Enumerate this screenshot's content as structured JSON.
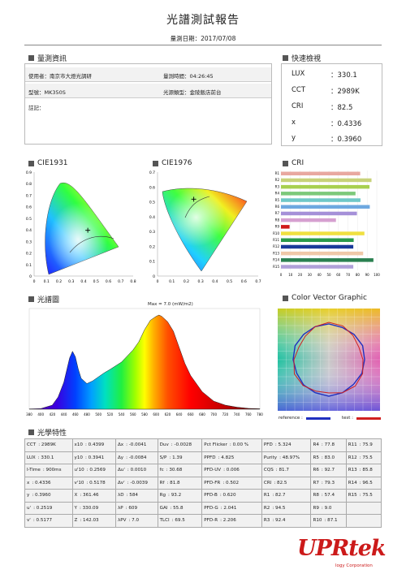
{
  "report": {
    "title": "光譜測試報告",
    "date_label": "量測日期：2017/07/08"
  },
  "measure_info": {
    "heading": "量測資訊",
    "user": "使用者：南京市大燈光調研",
    "time": "量測時間：04:26:45",
    "model": "型號：MK350S",
    "source": "光源類型：金陵飯店前台",
    "notes": "註記："
  },
  "quick": {
    "heading": "快速檢視",
    "items": [
      {
        "k": "LUX",
        "v": "：330.1"
      },
      {
        "k": "CCT",
        "v": "：2989K"
      },
      {
        "k": "CRI",
        "v": "：82.5"
      },
      {
        "k": "x",
        "v": "：0.4336"
      },
      {
        "k": "y",
        "v": "：0.3960"
      }
    ]
  },
  "cie1931": {
    "heading": "CIE1931",
    "yticks": [
      "0.9",
      "0.8",
      "0.7",
      "0.6",
      "0.5",
      "0.4",
      "0.3",
      "0.2",
      "0.1",
      "0"
    ],
    "xticks": [
      "0",
      "0.1",
      "0.2",
      "0.3",
      "0.4",
      "0.5",
      "0.6",
      "0.7",
      "0.8"
    ]
  },
  "cie1976": {
    "heading": "CIE1976",
    "yticks": [
      "0.7",
      "0.6",
      "0.5",
      "0.4",
      "0.3",
      "0.2",
      "0.1",
      "0"
    ],
    "xticks": [
      "0",
      "0.1",
      "0.2",
      "0.3",
      "0.4",
      "0.5",
      "0.6",
      "0.7"
    ]
  },
  "cri_section": {
    "heading": "CRI"
  },
  "spectrum_section": {
    "heading": "光譜圖",
    "max_label": "Max = 7.0 (mW/m2)",
    "xticks": [
      "380",
      "400",
      "420",
      "440",
      "460",
      "480",
      "500",
      "520",
      "540",
      "560",
      "580",
      "600",
      "620",
      "640",
      "660",
      "680",
      "700",
      "720",
      "740",
      "760",
      "780"
    ]
  },
  "vector_section": {
    "heading": "Color Vector Graphic",
    "legend_ref": "reference :",
    "legend_test": "test :"
  },
  "optical": {
    "heading": "光學特性",
    "rows": [
      [
        "CCT",
        ": 2989K",
        "x10",
        ": 0.4399",
        "Δx",
        ": -0.0041",
        "Duv",
        ": -0.0028",
        "Pct Flicker",
        ": 0.00 %",
        "PFD",
        ": 5.324",
        "R4",
        ": 77.8",
        "R11",
        ": 75.9"
      ],
      [
        "LUX",
        ": 330.1",
        "y10",
        ": 0.3941",
        "Δy",
        ": -0.0084",
        "S/P",
        ": 1.39",
        "PPFD",
        ": 4.825",
        "Purity",
        ": 48.97%",
        "R5",
        ": 83.0",
        "R12",
        ": 75.5"
      ],
      [
        "I-Time",
        ": 900ms",
        "u'10",
        ": 0.2569",
        "Δu'",
        ": 0.0010",
        "fc",
        ": 30.68",
        "PFD-UV",
        ": 0.006",
        "CQS",
        ": 81.7",
        "R6",
        ": 92.7",
        "R13",
        ": 85.8"
      ],
      [
        "x",
        ": 0.4336",
        "v'10",
        ": 0.5178",
        "Δv'",
        ": -0.0039",
        "Rf",
        ": 81.8",
        "PFD-FR",
        ": 0.502",
        "CRI",
        ": 82.5",
        "R7",
        ": 79.3",
        "R14",
        ": 96.5"
      ],
      [
        "y",
        ": 0.3960",
        "X",
        ": 361.46",
        "λD",
        ": 584",
        "Rg",
        ": 93.2",
        "PFD-B",
        ": 0.620",
        "R1",
        ": 82.7",
        "R8",
        ": 57.4",
        "R15",
        ": 75.5"
      ],
      [
        "u'",
        ": 0.2519",
        "Y",
        ": 330.09",
        "λP",
        ": 609",
        "GAI",
        ": 55.8",
        "PFD-G",
        ": 2.041",
        "R2",
        ": 94.5",
        "R9",
        ": 9.0",
        "",
        ""
      ],
      [
        "v'",
        ": 0.5177",
        "Z",
        ": 142.03",
        "λPV",
        ": 7.0",
        "TLCI",
        ": 69.5",
        "PFD-R",
        ": 2.206",
        "R3",
        ": 92.4",
        "R10",
        ": 87.1",
        "",
        ""
      ]
    ]
  },
  "logo": {
    "text": "UPRtek",
    "tagline": "logy Corporation"
  },
  "chart_data": [
    {
      "type": "bar",
      "orientation": "horizontal",
      "title": "CRI",
      "categories": [
        "R1",
        "R2",
        "R3",
        "R4",
        "R5",
        "R6",
        "R7",
        "R8",
        "R9",
        "R10",
        "R11",
        "R12",
        "R13",
        "R14",
        "R15"
      ],
      "values": [
        82.7,
        94.5,
        92.4,
        77.8,
        83.0,
        92.7,
        79.3,
        57.4,
        9.0,
        87.1,
        75.9,
        75.5,
        85.8,
        96.5,
        75.5
      ],
      "colors": [
        "#e8a8a0",
        "#c8d27a",
        "#a8d050",
        "#7cc97a",
        "#70c8c8",
        "#6ea8e0",
        "#a590d8",
        "#d6a0d0",
        "#d01818",
        "#f0e040",
        "#2a9a4a",
        "#1a3a9a",
        "#f0c8a8",
        "#2a8050",
        "#b0a0d8"
      ],
      "xticks": [
        "0",
        "10",
        "20",
        "30",
        "40",
        "50",
        "60",
        "70",
        "80",
        "90",
        "100"
      ],
      "xlim": [
        0,
        100
      ]
    },
    {
      "type": "area",
      "title": "光譜圖",
      "x": [
        380,
        400,
        420,
        430,
        440,
        450,
        455,
        460,
        465,
        470,
        480,
        490,
        500,
        510,
        520,
        540,
        560,
        570,
        580,
        590,
        600,
        605,
        610,
        620,
        630,
        640,
        650,
        660,
        680,
        700,
        720,
        740,
        760,
        780
      ],
      "y": [
        0.02,
        0.04,
        0.3,
        0.9,
        2.0,
        3.8,
        4.3,
        3.9,
        3.0,
        2.3,
        1.9,
        2.1,
        2.4,
        2.7,
        2.95,
        3.5,
        4.4,
        5.0,
        5.9,
        6.6,
        6.9,
        7.0,
        6.9,
        6.5,
        5.8,
        4.6,
        3.4,
        2.5,
        1.3,
        0.6,
        0.3,
        0.15,
        0.06,
        0.03
      ],
      "xlim": [
        380,
        780
      ],
      "ylim": [
        0,
        7.0
      ]
    },
    {
      "type": "scatter",
      "title": "CIE1931",
      "x": [
        0.4336
      ],
      "y": [
        0.396
      ],
      "xlim": [
        0,
        0.8
      ],
      "ylim": [
        0,
        0.9
      ]
    },
    {
      "type": "scatter",
      "title": "CIE1976",
      "x": [
        0.2519
      ],
      "y": [
        0.5177
      ],
      "xlim": [
        0,
        0.7
      ],
      "ylim": [
        0,
        0.7
      ]
    }
  ]
}
